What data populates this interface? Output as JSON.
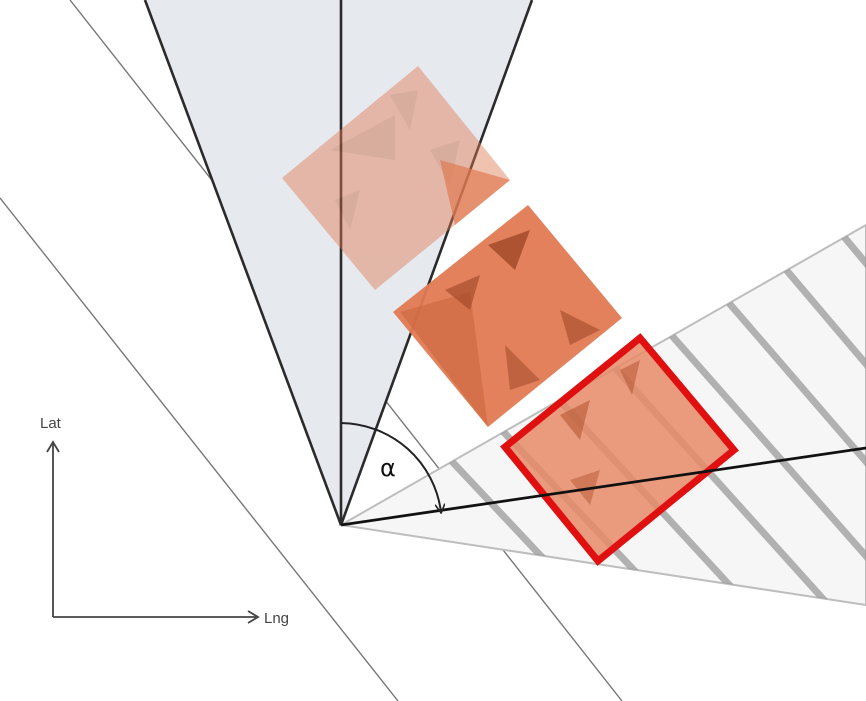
{
  "diagram": {
    "angle_symbol": "α",
    "axes": {
      "y_label": "Lat",
      "x_label": "Lng"
    }
  },
  "colors": {
    "background": "#ffffff",
    "view_cone_fill": "#e6e9ee",
    "cone_stroke": "#2b2b2b",
    "hatch_cone_fill": "#f6f6f6",
    "hatch_stripe": "#9a9a9a",
    "parcel_orange": "#e07a52",
    "parcel_shadow": "#b0502c",
    "highlight_border": "#e01010",
    "guide_line": "#777777"
  }
}
